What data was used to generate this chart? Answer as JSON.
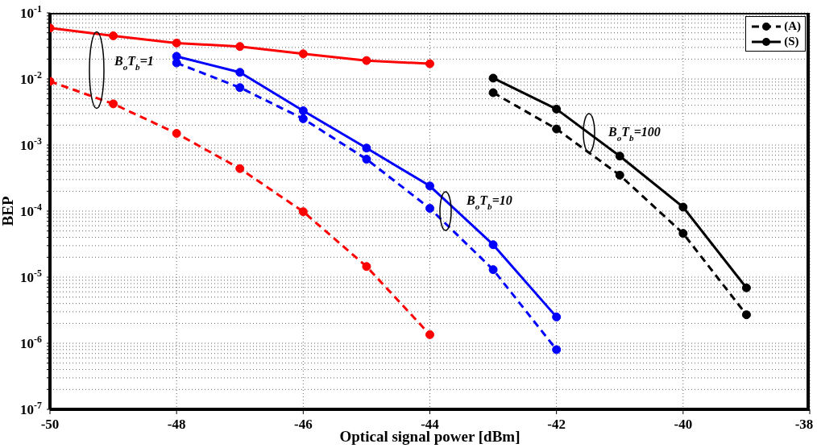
{
  "chart_data": {
    "type": "line",
    "xlabel": "Optical signal power [dBm]",
    "ylabel": "BEP",
    "xlim": [
      -50,
      -38
    ],
    "xticks": [
      -50,
      -48,
      -46,
      -44,
      -42,
      -40,
      -38
    ],
    "ylim": [
      1e-07,
      0.1
    ],
    "yticks": [
      {
        "value": 1e-07,
        "label": "10$^{-7}$"
      },
      {
        "value": 2e-07,
        "label": null
      },
      {
        "value": 3e-07,
        "label": null
      },
      {
        "value": 4e-07,
        "label": null
      },
      {
        "value": 5e-07,
        "label": null
      },
      {
        "value": 6e-07,
        "label": null
      },
      {
        "value": 7e-07,
        "label": null
      },
      {
        "value": 8e-07,
        "label": null
      },
      {
        "value": 9e-07,
        "label": null
      },
      {
        "value": 1e-06,
        "label": "10$^{-6}$"
      },
      {
        "value": 2e-06,
        "label": null
      },
      {
        "value": 3e-06,
        "label": null
      },
      {
        "value": 4e-06,
        "label": null
      },
      {
        "value": 5e-06,
        "label": null
      },
      {
        "value": 6e-06,
        "label": null
      },
      {
        "value": 7e-06,
        "label": null
      },
      {
        "value": 8e-06,
        "label": null
      },
      {
        "value": 9e-06,
        "label": null
      },
      {
        "value": 1e-05,
        "label": "10$^{-5}$"
      },
      {
        "value": 2e-05,
        "label": null
      },
      {
        "value": 3e-05,
        "label": null
      },
      {
        "value": 4e-05,
        "label": null
      },
      {
        "value": 5e-05,
        "label": null
      },
      {
        "value": 6e-05,
        "label": null
      },
      {
        "value": 7e-05,
        "label": null
      },
      {
        "value": 8e-05,
        "label": null
      },
      {
        "value": 9e-05,
        "label": null
      },
      {
        "value": 0.0001,
        "label": "10$^{-4}$"
      },
      {
        "value": 0.0002,
        "label": null
      },
      {
        "value": 0.0003,
        "label": null
      },
      {
        "value": 0.0004,
        "label": null
      },
      {
        "value": 0.0005,
        "label": null
      },
      {
        "value": 0.0006,
        "label": null
      },
      {
        "value": 0.0007,
        "label": null
      },
      {
        "value": 0.0008,
        "label": null
      },
      {
        "value": 0.0009,
        "label": null
      },
      {
        "value": 0.001,
        "label": "10$^{-3}$"
      },
      {
        "value": 0.002,
        "label": null
      },
      {
        "value": 0.003,
        "label": null
      },
      {
        "value": 0.004,
        "label": null
      },
      {
        "value": 0.005,
        "label": null
      },
      {
        "value": 0.006,
        "label": null
      },
      {
        "value": 0.007,
        "label": null
      },
      {
        "value": 0.008,
        "label": null
      },
      {
        "value": 0.009,
        "label": null
      },
      {
        "value": 0.01,
        "label": "10$^{-2}$"
      },
      {
        "value": 0.02,
        "label": null
      },
      {
        "value": 0.03,
        "label": null
      },
      {
        "value": 0.04,
        "label": null
      },
      {
        "value": 0.05,
        "label": null
      },
      {
        "value": 0.06,
        "label": null
      },
      {
        "value": 0.07,
        "label": null
      },
      {
        "value": 0.08,
        "label": null
      },
      {
        "value": 0.09,
        "label": null
      },
      {
        "value": 0.1,
        "label": "10$^{-1}$"
      }
    ],
    "log": "y",
    "grid": true,
    "legend": "top right",
    "marker": "circle",
    "series": [
      {
        "color": "#ff0000",
        "line_style": "solid",
        "x": [
          -50,
          -49,
          -48,
          -47,
          -46,
          -45,
          -44
        ],
        "values": [
          0.059,
          0.045,
          0.035,
          0.031,
          0.024,
          0.019,
          0.017
        ]
      },
      {
        "color": "#ff0000",
        "line_style": "dashed",
        "x": [
          -50,
          -49,
          -48,
          -47,
          -46,
          -45,
          -44
        ],
        "values": [
          0.0092,
          0.0042,
          0.0015,
          0.00044,
          9.8e-05,
          1.45e-05,
          1.35e-06
        ]
      },
      {
        "color": "#0000ff",
        "line_style": "solid",
        "x": [
          -48,
          -47,
          -46,
          -45,
          -44,
          -43,
          -42
        ],
        "values": [
          0.022,
          0.0126,
          0.0033,
          0.0009,
          0.00024,
          3.1e-05,
          2.5e-06
        ]
      },
      {
        "color": "#0000ff",
        "line_style": "dashed",
        "x": [
          -48,
          -47,
          -46,
          -45,
          -44,
          -43,
          -42
        ],
        "values": [
          0.0175,
          0.0074,
          0.0025,
          0.00061,
          0.00011,
          1.3e-05,
          8e-07
        ]
      },
      {
        "name": "(A)",
        "color": "#000000",
        "line_style": "dashed",
        "x": [
          -43,
          -42,
          -41,
          -40,
          -39
        ],
        "values": [
          0.0062,
          0.00175,
          0.00035,
          4.6e-05,
          2.7e-06
        ]
      },
      {
        "name": "(S)",
        "color": "#000000",
        "line_style": "solid",
        "x": [
          -43,
          -42,
          -41,
          -40,
          -39
        ],
        "values": [
          0.0103,
          0.0035,
          0.00068,
          0.000115,
          6.9e-06
        ]
      }
    ],
    "annotations": [
      "B$_{o}$T$_{b}$=1",
      "B$_{o}$T$_{b}$=10",
      "B$_{o}$T$_{b}$=100"
    ]
  }
}
